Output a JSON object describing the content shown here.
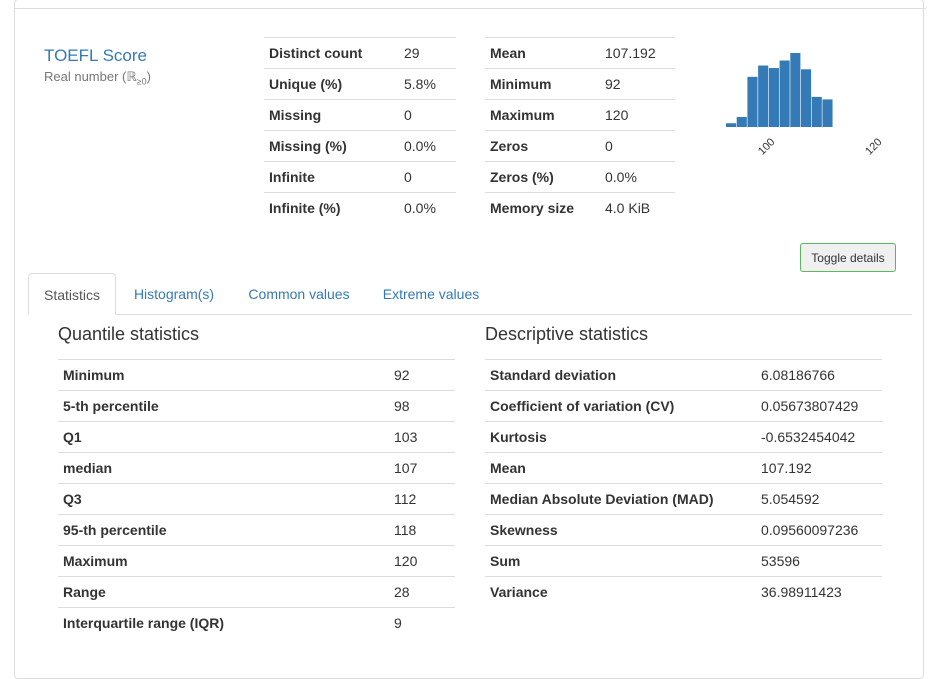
{
  "variable": {
    "name": "TOEFL Score",
    "type_prefix": "Real number (",
    "type_symbol": "ℝ",
    "type_sub": "≥0",
    "type_suffix": ")"
  },
  "overview_left": [
    {
      "label": "Distinct count",
      "value": "29"
    },
    {
      "label": "Unique (%)",
      "value": "5.8%"
    },
    {
      "label": "Missing",
      "value": "0"
    },
    {
      "label": "Missing (%)",
      "value": "0.0%"
    },
    {
      "label": "Infinite",
      "value": "0"
    },
    {
      "label": "Infinite (%)",
      "value": "0.0%"
    }
  ],
  "overview_right": [
    {
      "label": "Mean",
      "value": "107.192"
    },
    {
      "label": "Minimum",
      "value": "92"
    },
    {
      "label": "Maximum",
      "value": "120"
    },
    {
      "label": "Zeros",
      "value": "0"
    },
    {
      "label": "Zeros (%)",
      "value": "0.0%"
    },
    {
      "label": "Memory size",
      "value": "4.0 KiB"
    }
  ],
  "chart_data": {
    "type": "bar",
    "title": "",
    "xlabel": "",
    "ylabel": "",
    "tick_labels": [
      "100",
      "120"
    ],
    "tick_values": [
      100,
      120
    ],
    "xlim": [
      92,
      120
    ],
    "bins": [
      {
        "start": 92.0,
        "count": 3
      },
      {
        "start": 94.0,
        "count": 8
      },
      {
        "start": 96.0,
        "count": 40
      },
      {
        "start": 98.0,
        "count": 49
      },
      {
        "start": 100.0,
        "count": 47
      },
      {
        "start": 102.0,
        "count": 53
      },
      {
        "start": 104.0,
        "count": 59
      },
      {
        "start": 106.0,
        "count": 46
      },
      {
        "start": 108.0,
        "count": 24
      },
      {
        "start": 110.0,
        "count": 22
      }
    ],
    "bin_width": 2,
    "bar_color": "#337ab7"
  },
  "toggle_label": "Toggle details",
  "tabs": [
    {
      "label": "Statistics"
    },
    {
      "label": "Histogram(s)"
    },
    {
      "label": "Common values"
    },
    {
      "label": "Extreme values"
    }
  ],
  "quantile": {
    "title": "Quantile statistics",
    "rows": [
      {
        "label": "Minimum",
        "value": "92"
      },
      {
        "label": "5-th percentile",
        "value": "98"
      },
      {
        "label": "Q1",
        "value": "103"
      },
      {
        "label": "median",
        "value": "107"
      },
      {
        "label": "Q3",
        "value": "112"
      },
      {
        "label": "95-th percentile",
        "value": "118"
      },
      {
        "label": "Maximum",
        "value": "120"
      },
      {
        "label": "Range",
        "value": "28"
      },
      {
        "label": "Interquartile range (IQR)",
        "value": "9"
      }
    ]
  },
  "descriptive": {
    "title": "Descriptive statistics",
    "rows": [
      {
        "label": "Standard deviation",
        "value": "6.08186766"
      },
      {
        "label": "Coefficient of variation (CV)",
        "value": "0.05673807429"
      },
      {
        "label": "Kurtosis",
        "value": "-0.6532454042"
      },
      {
        "label": "Mean",
        "value": "107.192"
      },
      {
        "label": "Median Absolute Deviation (MAD)",
        "value": "5.054592"
      },
      {
        "label": "Skewness",
        "value": "0.09560097236"
      },
      {
        "label": "Sum",
        "value": "53596"
      },
      {
        "label": "Variance",
        "value": "36.98911423"
      }
    ]
  }
}
